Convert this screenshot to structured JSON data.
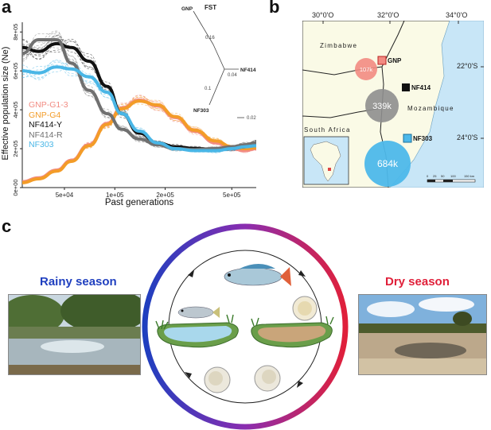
{
  "panels": {
    "a": {
      "letter": "a",
      "chart_data": {
        "type": "line",
        "xlabel": "Past generations",
        "ylabel": "Effective population size (Ne)",
        "x_scale": "log",
        "x_ticks": [
          "5e+04",
          "1e+05",
          "2e+05",
          "5e+05"
        ],
        "y_ticks": [
          "0e+00",
          "2e+05",
          "4e+05",
          "6e+05",
          "8e+05"
        ],
        "ylim": [
          0,
          850000
        ],
        "legend_placement": "middle-left",
        "x": [
          28000,
          35000,
          45000,
          55000,
          70000,
          90000,
          110000,
          140000,
          180000,
          230000,
          300000,
          400000,
          500000,
          600000,
          700000
        ],
        "series": [
          {
            "name": "GNP-G1-3",
            "color": "#f28b82",
            "values": [
              30000,
              50000,
              90000,
              140000,
              220000,
              330000,
              410000,
              450000,
              420000,
              360000,
              290000,
              230000,
              200000,
              190000,
              200000
            ]
          },
          {
            "name": "GNP-G4",
            "color": "#f39c28",
            "values": [
              25000,
              45000,
              85000,
              135000,
              215000,
              325000,
              405000,
              445000,
              425000,
              365000,
              295000,
              240000,
              210000,
              200000,
              205000
            ]
          },
          {
            "name": "NF414-Y",
            "color": "#111111",
            "values": [
              720000,
              700000,
              740000,
              720000,
              650000,
              520000,
              380000,
              280000,
              230000,
              210000,
              200000,
              195000,
              200000,
              210000,
              230000
            ]
          },
          {
            "name": "NF414-R",
            "color": "#707070",
            "values": [
              690000,
              760000,
              760000,
              640000,
              500000,
              380000,
              300000,
              250000,
              220000,
              200000,
              195000,
              200000,
              210000,
              220000,
              230000
            ]
          },
          {
            "name": "NF303",
            "color": "#49b6e6",
            "values": [
              600000,
              590000,
              620000,
              610000,
              570000,
              490000,
              380000,
              290000,
              230000,
              200000,
              190000,
              190000,
              200000,
              210000,
              215000
            ]
          }
        ]
      },
      "fst_tree": {
        "title": "FST",
        "labels": [
          "GNP",
          "NF414",
          "NF303"
        ],
        "branch_values": [
          "0.16",
          "0.04",
          "0.1"
        ],
        "scale": "0.02"
      }
    },
    "b": {
      "letter": "b",
      "lon_ticks": [
        "30°0'O",
        "32°0'O",
        "34°0'O"
      ],
      "lat_ticks": [
        "22°0'S",
        "24°0'S"
      ],
      "countries": [
        "Zimbabwe",
        "Mozambique",
        "South Africa"
      ],
      "sites": [
        {
          "name": "GNP",
          "value": "107k",
          "color": "#f28b82"
        },
        {
          "name": "NF414",
          "value": "339k",
          "color": "#8e8e8e"
        },
        {
          "name": "NF303",
          "value": "684k",
          "color": "#4db8ea"
        }
      ],
      "scale_labels": [
        "0",
        "25",
        "50",
        "100",
        "150 km"
      ]
    },
    "c": {
      "letter": "c",
      "rainy_label": "Rainy season",
      "dry_label": "Dry season",
      "rainy_color": "#1f3fbf",
      "dry_color": "#e0203a"
    }
  }
}
